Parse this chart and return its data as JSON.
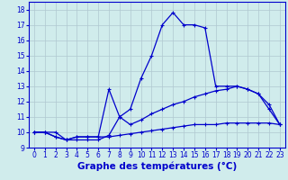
{
  "line1_x": [
    0,
    1,
    2,
    3,
    4,
    5,
    6,
    7,
    8,
    9,
    10,
    11,
    12,
    13,
    14,
    15,
    16,
    17,
    18,
    19,
    20,
    21,
    22,
    23
  ],
  "line1_y": [
    10.0,
    10.0,
    10.0,
    9.5,
    9.5,
    9.5,
    9.5,
    9.8,
    11.0,
    11.5,
    13.5,
    15.0,
    17.0,
    17.8,
    17.0,
    17.0,
    16.8,
    13.0,
    13.0,
    13.0,
    12.8,
    12.5,
    11.5,
    10.5
  ],
  "line2_x": [
    0,
    1,
    2,
    3,
    4,
    5,
    6,
    7,
    8,
    9,
    10,
    11,
    12,
    13,
    14,
    15,
    16,
    17,
    18,
    19,
    20,
    21,
    22,
    23
  ],
  "line2_y": [
    10.0,
    10.0,
    9.7,
    9.5,
    9.7,
    9.7,
    9.7,
    12.8,
    11.0,
    10.5,
    10.8,
    11.2,
    11.5,
    11.8,
    12.0,
    12.3,
    12.5,
    12.7,
    12.8,
    13.0,
    12.8,
    12.5,
    11.8,
    10.5
  ],
  "line3_x": [
    0,
    1,
    2,
    3,
    4,
    5,
    6,
    7,
    8,
    9,
    10,
    11,
    12,
    13,
    14,
    15,
    16,
    17,
    18,
    19,
    20,
    21,
    22,
    23
  ],
  "line3_y": [
    10.0,
    10.0,
    9.7,
    9.5,
    9.7,
    9.7,
    9.7,
    9.7,
    9.8,
    9.9,
    10.0,
    10.1,
    10.2,
    10.3,
    10.4,
    10.5,
    10.5,
    10.5,
    10.6,
    10.6,
    10.6,
    10.6,
    10.6,
    10.5
  ],
  "line_color": "#0000cc",
  "marker": "+",
  "markersize": 3,
  "xlabel": "Graphe des températures (°C)",
  "xlim": [
    -0.5,
    23.5
  ],
  "ylim": [
    9.0,
    18.5
  ],
  "yticks": [
    9,
    10,
    11,
    12,
    13,
    14,
    15,
    16,
    17,
    18
  ],
  "xticks": [
    0,
    1,
    2,
    3,
    4,
    5,
    6,
    7,
    8,
    9,
    10,
    11,
    12,
    13,
    14,
    15,
    16,
    17,
    18,
    19,
    20,
    21,
    22,
    23
  ],
  "bg_color": "#d0ecec",
  "grid_color": "#b0c8d0",
  "tick_fontsize": 5.5,
  "xlabel_fontsize": 7.5,
  "linewidth": 0.9
}
